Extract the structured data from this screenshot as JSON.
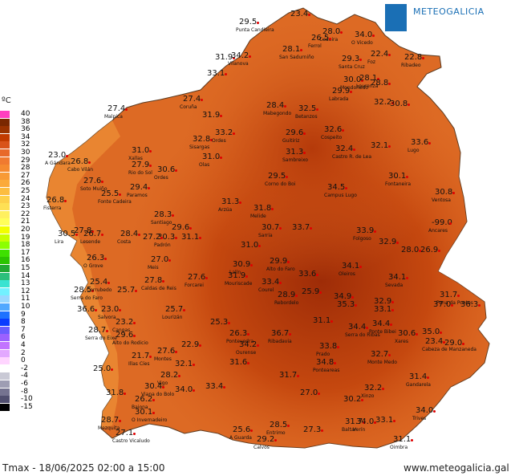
{
  "header": {
    "logo_text": "METEOGALICIA"
  },
  "legend": {
    "unit": "ºC",
    "steps": [
      {
        "label": "40",
        "color": "#ff3fbf"
      },
      {
        "label": "38",
        "color": "#7a2800"
      },
      {
        "label": "36",
        "color": "#9a3300"
      },
      {
        "label": "34",
        "color": "#c23b00"
      },
      {
        "label": "32",
        "color": "#d9531a"
      },
      {
        "label": "30",
        "color": "#e8692a"
      },
      {
        "label": "29",
        "color": "#f07a30"
      },
      {
        "label": "28",
        "color": "#f58a30"
      },
      {
        "label": "27",
        "color": "#f89a35"
      },
      {
        "label": "26",
        "color": "#fbaa3a"
      },
      {
        "label": "25",
        "color": "#fcbd40"
      },
      {
        "label": "24",
        "color": "#fdd14a"
      },
      {
        "label": "23",
        "color": "#fee054"
      },
      {
        "label": "22",
        "color": "#fff05f"
      },
      {
        "label": "21",
        "color": "#ffff5a"
      },
      {
        "label": "20",
        "color": "#f2ff00"
      },
      {
        "label": "19",
        "color": "#c8ff00"
      },
      {
        "label": "18",
        "color": "#8cff00"
      },
      {
        "label": "17",
        "color": "#3ee000"
      },
      {
        "label": "16",
        "color": "#2bc400"
      },
      {
        "label": "15",
        "color": "#21a833"
      },
      {
        "label": "14",
        "color": "#2cbf7b"
      },
      {
        "label": "13",
        "color": "#38e3d1"
      },
      {
        "label": "12",
        "color": "#72f1ff"
      },
      {
        "label": "11",
        "color": "#9ad8ff"
      },
      {
        "label": "10",
        "color": "#51a8ff"
      },
      {
        "label": "9",
        "color": "#1f72ff"
      },
      {
        "label": "8",
        "color": "#0a3cff"
      },
      {
        "label": "7",
        "color": "#6a5cff"
      },
      {
        "label": "6",
        "color": "#9b61ff"
      },
      {
        "label": "4",
        "color": "#c274ff"
      },
      {
        "label": "2",
        "color": "#e3a8ff"
      },
      {
        "label": "0",
        "color": "#ffd5ff"
      },
      {
        "label": "-2",
        "color": "#ffffff"
      },
      {
        "label": "-4",
        "color": "#c9c9d5"
      },
      {
        "label": "-6",
        "color": "#9e9db3"
      },
      {
        "label": "-8",
        "color": "#757390"
      },
      {
        "label": "-10",
        "color": "#514f6f"
      },
      {
        "label": "-15",
        "color": "#000000"
      }
    ]
  },
  "cities": [
    {
      "t": "29.5",
      "n": "Punta Candieira"
    },
    {
      "t": "23.4",
      "n": ""
    },
    {
      "t": "28.0",
      "n": "Cedeira"
    },
    {
      "t": "26.5",
      "n": "Ferrol"
    },
    {
      "t": "34.0",
      "n": "O Vicedo"
    },
    {
      "t": "28.1",
      "n": "San Sadurniño"
    },
    {
      "t": "29.3",
      "n": "Santa Cruz"
    },
    {
      "t": "22.4",
      "n": "Foz"
    },
    {
      "t": "22.8",
      "n": "Ribadeo"
    },
    {
      "t": "31.9",
      "n": ""
    },
    {
      "t": "34.2",
      "n": "Vilanova"
    },
    {
      "t": "33.1",
      "n": ""
    },
    {
      "t": "30.0",
      "n": "Mondoñedo"
    },
    {
      "t": "28.1",
      "n": "Lourenzá"
    },
    {
      "t": "28.8",
      "n": ""
    },
    {
      "t": "29.9",
      "n": "Labrada"
    },
    {
      "t": "32.2",
      "n": ""
    },
    {
      "t": "30.8",
      "n": ""
    },
    {
      "t": "27.4",
      "n": "Coruña"
    },
    {
      "t": "27.4",
      "n": "Malpica"
    },
    {
      "t": "28.4",
      "n": "Mabegondo"
    },
    {
      "t": "32.5",
      "n": "Betanzos"
    },
    {
      "t": "31.9",
      "n": ""
    },
    {
      "t": "32.8",
      "n": "Sisargas"
    },
    {
      "t": "33.2",
      "n": "Ordes"
    },
    {
      "t": "29.6",
      "n": "Guitiriz"
    },
    {
      "t": "32.6",
      "n": "Cospeito"
    },
    {
      "t": "33.6",
      "n": "Lugo"
    },
    {
      "t": "31.3",
      "n": "Sambreixo"
    },
    {
      "t": "32.4",
      "n": "Castro R. de Lea"
    },
    {
      "t": "32.1",
      "n": ""
    },
    {
      "t": "31.0",
      "n": "Xallas"
    },
    {
      "t": "31.0",
      "n": "Olas"
    },
    {
      "t": "26.8",
      "n": "Cabo Vilán"
    },
    {
      "t": "23.0",
      "n": "A Gándara"
    },
    {
      "t": "27.9",
      "n": "Rio do Sol"
    },
    {
      "t": "30.6",
      "n": "Ordes"
    },
    {
      "t": "27.6",
      "n": "Soto Muiño"
    },
    {
      "t": "29.5",
      "n": "Corno do Boi"
    },
    {
      "t": "30.1",
      "n": "Fontaneira"
    },
    {
      "t": "25.5",
      "n": "Fonte Cadeira"
    },
    {
      "t": "29.4",
      "n": "Paramos"
    },
    {
      "t": "34.5",
      "n": "Campus Lugo"
    },
    {
      "t": "30.8",
      "n": "Ventosa"
    },
    {
      "t": "26.8",
      "n": "Fisterra"
    },
    {
      "t": "31.3",
      "n": "Arzúa"
    },
    {
      "t": "31.8",
      "n": "Melide"
    },
    {
      "t": "28.3",
      "n": "Santiago"
    },
    {
      "t": "-99.0",
      "n": "Ancares"
    },
    {
      "t": "27.8",
      "n": ""
    },
    {
      "t": "30.5",
      "n": "Lira"
    },
    {
      "t": "26.7",
      "n": "Lesende"
    },
    {
      "t": "29.6",
      "n": ""
    },
    {
      "t": "28.4",
      "n": "Costa"
    },
    {
      "t": "30.3",
      "n": "Padrón"
    },
    {
      "t": "31.1",
      "n": ""
    },
    {
      "t": "30.7",
      "n": "Sarria"
    },
    {
      "t": "33.7",
      "n": ""
    },
    {
      "t": "33.9",
      "n": "Folgoso"
    },
    {
      "t": "32.9",
      "n": ""
    },
    {
      "t": "28.0",
      "n": ""
    },
    {
      "t": "26.9",
      "n": ""
    },
    {
      "t": "27.2",
      "n": ""
    },
    {
      "t": "34.1",
      "n": "Oleiros"
    },
    {
      "t": "26.3",
      "n": "O Grove"
    },
    {
      "t": "27.0",
      "n": "Meis"
    },
    {
      "t": "30.9",
      "n": "Lalín"
    },
    {
      "t": "29.9",
      "n": "Alto do Faro"
    },
    {
      "t": "31.9",
      "n": "Mouriscade"
    },
    {
      "t": "27.6",
      "n": "Forcarei"
    },
    {
      "t": "27.8",
      "n": "Caldas de Reis"
    },
    {
      "t": "33.6",
      "n": ""
    },
    {
      "t": "34.1",
      "n": "Sevada"
    },
    {
      "t": "33.4",
      "n": "Courel"
    },
    {
      "t": "28.5",
      "n": "Serra do Faro"
    },
    {
      "t": "25.4",
      "n": "Corrubedo"
    },
    {
      "t": "25.7",
      "n": ""
    },
    {
      "t": "25.9",
      "n": ""
    },
    {
      "t": "34.9",
      "n": ""
    },
    {
      "t": "35.3",
      "n": ""
    },
    {
      "t": "32.9",
      "n": ""
    },
    {
      "t": "33.1",
      "n": ""
    },
    {
      "t": "37.0",
      "n": ""
    },
    {
      "t": "36.6",
      "n": ""
    },
    {
      "t": "23.0",
      "n": "Salvora"
    },
    {
      "t": "25.7",
      "n": "Lourizán"
    },
    {
      "t": "28.9",
      "n": "Rebordelo"
    },
    {
      "t": "31.7",
      "n": "Pena da Pontes"
    },
    {
      "t": "36.3",
      "n": ""
    },
    {
      "t": "25.3",
      "n": ""
    },
    {
      "t": "31.1",
      "n": ""
    },
    {
      "t": "34.4",
      "n": "Serra do Ribas"
    },
    {
      "t": "34.4",
      "n": "Ponte Bibei"
    },
    {
      "t": "30.6",
      "n": "Xares"
    },
    {
      "t": "35.0",
      "n": ""
    },
    {
      "t": "28.7",
      "n": "Serra do Eixe"
    },
    {
      "t": "23.2",
      "n": "Cangas"
    },
    {
      "t": "26.3",
      "n": "Pontevedra"
    },
    {
      "t": "36.7",
      "n": "Ribadavia"
    },
    {
      "t": "34.2",
      "n": "Ourense"
    },
    {
      "t": "33.8",
      "n": "Prado"
    },
    {
      "t": "29.6",
      "n": "Alto do Rodicio"
    },
    {
      "t": "22.9",
      "n": ""
    },
    {
      "t": "27.6",
      "n": "Montes"
    },
    {
      "t": "31.6",
      "n": ""
    },
    {
      "t": "34.8",
      "n": "Ponteareas"
    },
    {
      "t": "32.7",
      "n": "Monte Medo"
    },
    {
      "t": "23.4",
      "n": "Cabeza de Manzaneda"
    },
    {
      "t": "29.0",
      "n": ""
    },
    {
      "t": "25.0",
      "n": ""
    },
    {
      "t": "21.7",
      "n": "Illas Cíes"
    },
    {
      "t": "28.2",
      "n": "Vigo"
    },
    {
      "t": "32.1",
      "n": ""
    },
    {
      "t": "31.7",
      "n": ""
    },
    {
      "t": "31.4",
      "n": "Gandarela"
    },
    {
      "t": "30.4",
      "n": "Viana do Bolo"
    },
    {
      "t": "34.0",
      "n": ""
    },
    {
      "t": "33.4",
      "n": ""
    },
    {
      "t": "31.8",
      "n": ""
    },
    {
      "t": "26.2",
      "n": "Baiona"
    },
    {
      "t": "27.0",
      "n": ""
    },
    {
      "t": "32.2",
      "n": "Xinzo"
    },
    {
      "t": "30.1",
      "n": "O Invernadeiro"
    },
    {
      "t": "30.2",
      "n": ""
    },
    {
      "t": "34.0",
      "n": "Trives"
    },
    {
      "t": "28.7",
      "n": "Mezquita"
    },
    {
      "t": "27.1",
      "n": "Castro Vicaludo"
    },
    {
      "t": "25.6",
      "n": "A Guarda"
    },
    {
      "t": "28.5",
      "n": "Entrimo"
    },
    {
      "t": "29.2",
      "n": "Calvos"
    },
    {
      "t": "27.3",
      "n": ""
    },
    {
      "t": "31.7",
      "n": "Baltar"
    },
    {
      "t": "34.0",
      "n": "Verín"
    },
    {
      "t": "33.1",
      "n": ""
    },
    {
      "t": "31.1",
      "n": "Oimbra"
    },
    {
      "t": "31.0",
      "n": ""
    }
  ],
  "footer": {
    "caption": "Tmax - 18/06/2025 02:00 a 15:00",
    "website": "www.meteogalicia.gal"
  }
}
